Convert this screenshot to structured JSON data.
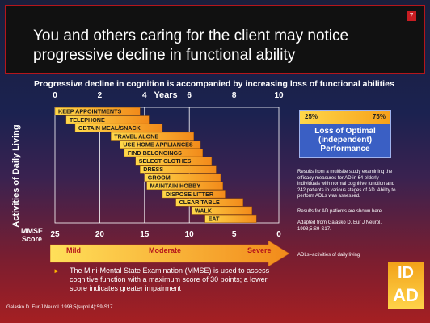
{
  "slide": {
    "title": "You and others caring for the client may notice progressive decline in functional ability",
    "page_number": "7",
    "subtitle": "Progressive decline in cognition is accompanied by increasing loss of functional abilities",
    "mmse_label_line1": "MMSE",
    "mmse_label_line2": "Score",
    "stages": [
      "Mild",
      "Moderate",
      "Severe"
    ],
    "loss_box": {
      "left_pct": "25%",
      "right_pct": "75%",
      "title": "Loss of Optimal (independent) Performance"
    },
    "note_study": "Results from a multisite study examining the efficacy measures for AD in 64 elderly individuals with normal cognitive function and 242 patients in various stages of AD. Ability to perform ADLs was assessed.",
    "note_results": "Results for AD patients are shown here.",
    "note_adapted": "Adapted from Galasko D. Eur J Neurol. 1998;5:S9-S17.",
    "note_adls": "ADLs=activities of daily living",
    "mmse_note": "The Mini-Mental State Examination (MMSE) is used to assess cognitive function with a maximum score of 30 points; a lower score indicates greater impairment",
    "citation": "Galasko D. Eur J Neurol. 1998;5(suppl 4):S9-S17.",
    "logo_top": "ID",
    "logo_bottom": "AD"
  },
  "chart_data": {
    "type": "bar",
    "title": "Progressive decline in cognition is accompanied by increasing loss of functional abilities",
    "xlabel": "Years",
    "ylabel": "Activities of Daily Living",
    "x_ticks": [
      0,
      2,
      4,
      6,
      8,
      10
    ],
    "xlim": [
      0,
      10
    ],
    "mmse_ticks": [
      25,
      20,
      15,
      10,
      5,
      0
    ],
    "colors": {
      "start": "#ffd84a",
      "end": "#f28a1a",
      "stroke": "#8a4a00"
    },
    "series": [
      {
        "activity": "KEEP APPOINTMENTS",
        "start_year": 0.0,
        "end_year": 3.8
      },
      {
        "activity": "TELEPHONE",
        "start_year": 0.5,
        "end_year": 4.2
      },
      {
        "activity": "OBTAIN MEAL/SNACK",
        "start_year": 0.9,
        "end_year": 4.8
      },
      {
        "activity": "TRAVEL ALONE",
        "start_year": 2.5,
        "end_year": 6.2
      },
      {
        "activity": "USE HOME APPLIANCES",
        "start_year": 2.9,
        "end_year": 6.5
      },
      {
        "activity": "FIND BELONGINGS",
        "start_year": 3.1,
        "end_year": 6.6
      },
      {
        "activity": "SELECT CLOTHES",
        "start_year": 3.6,
        "end_year": 7.0
      },
      {
        "activity": "DRESS",
        "start_year": 3.8,
        "end_year": 7.2
      },
      {
        "activity": "GROOM",
        "start_year": 4.0,
        "end_year": 7.4
      },
      {
        "activity": "MAINTAIN HOBBY",
        "start_year": 4.1,
        "end_year": 7.5
      },
      {
        "activity": "DISPOSE LITTER",
        "start_year": 4.8,
        "end_year": 7.6
      },
      {
        "activity": "CLEAR TABLE",
        "start_year": 5.4,
        "end_year": 8.4
      },
      {
        "activity": "WALK",
        "start_year": 6.1,
        "end_year": 8.8
      },
      {
        "activity": "EAT",
        "start_year": 6.7,
        "end_year": 9.0
      }
    ]
  }
}
